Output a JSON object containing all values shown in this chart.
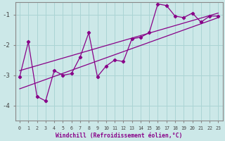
{
  "xlabel": "Windchill (Refroidissement éolien,°C)",
  "bg_color": "#cce8e8",
  "grid_color": "#aad4d4",
  "line_color": "#880088",
  "spine_color": "#888888",
  "tick_color": "#444444",
  "xlim": [
    -0.5,
    23.5
  ],
  "ylim": [
    -4.5,
    -0.6
  ],
  "yticks": [
    -4,
    -3,
    -2,
    -1
  ],
  "xticks": [
    0,
    1,
    2,
    3,
    4,
    5,
    6,
    7,
    8,
    9,
    10,
    11,
    12,
    13,
    14,
    15,
    16,
    17,
    18,
    19,
    20,
    21,
    22,
    23
  ],
  "jagged_x": [
    0,
    1,
    2,
    3,
    4,
    5,
    6,
    7,
    8,
    9,
    10,
    11,
    12,
    13,
    14,
    15,
    16,
    17,
    18,
    19,
    20,
    21,
    22,
    23
  ],
  "jagged_y": [
    -3.05,
    -1.9,
    -3.7,
    -3.85,
    -2.85,
    -3.0,
    -2.95,
    -2.4,
    -1.6,
    -3.05,
    -2.7,
    -2.5,
    -2.55,
    -1.8,
    -1.75,
    -1.6,
    -0.65,
    -0.7,
    -1.05,
    -1.1,
    -0.95,
    -1.25,
    -1.05,
    -1.05
  ],
  "upper_line_x": [
    0,
    23
  ],
  "upper_line_y": [
    -2.85,
    -0.95
  ],
  "lower_line_x": [
    0,
    23
  ],
  "lower_line_y": [
    -3.45,
    -1.1
  ]
}
